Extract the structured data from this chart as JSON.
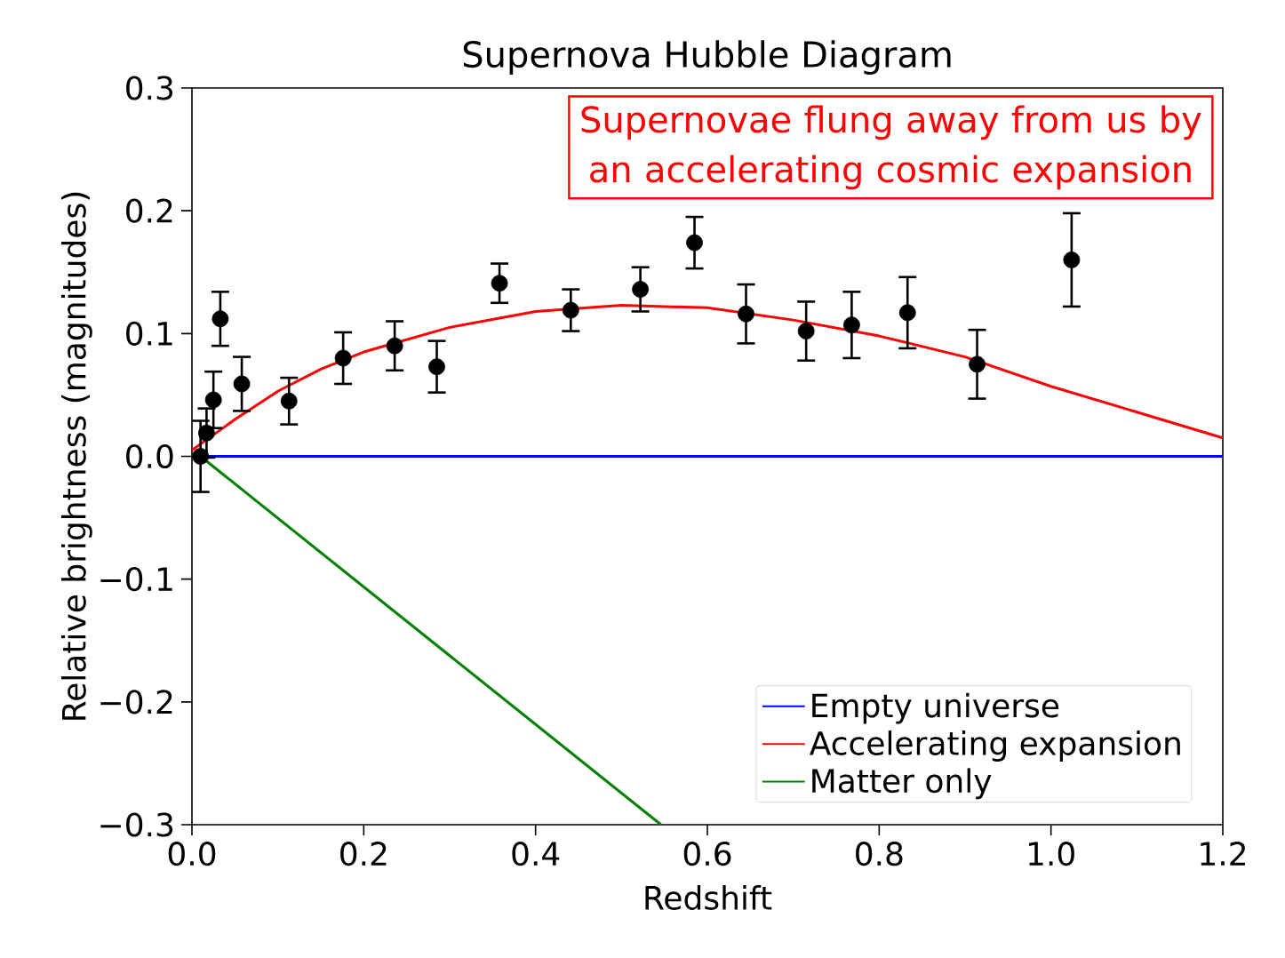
{
  "chart_data": {
    "type": "line",
    "title": "Supernova Hubble Diagram",
    "xlabel": "Redshift",
    "ylabel": "Relative brightness (magnitudes)",
    "annotations": [
      "Supernovae flung away from us by an accelerating cosmic expansion"
    ],
    "xlim": [
      0,
      1.2
    ],
    "ylim": [
      -0.3,
      0.3
    ],
    "xticks": [
      {
        "value": 0,
        "label": "0.0"
      },
      {
        "value": 0.2,
        "label": "0.2"
      },
      {
        "value": 0.4,
        "label": "0.4"
      },
      {
        "value": 0.6,
        "label": "0.6"
      },
      {
        "value": 0.8,
        "label": "0.8"
      },
      {
        "value": 1.0,
        "label": "1.0"
      },
      {
        "value": 1.2,
        "label": "1.2"
      }
    ],
    "yticks": [
      {
        "value": -0.3,
        "label": "−0.3"
      },
      {
        "value": -0.2,
        "label": "−0.2"
      },
      {
        "value": -0.1,
        "label": "−0.1"
      },
      {
        "value": 0,
        "label": "0.0"
      },
      {
        "value": 0.1,
        "label": "0.1"
      },
      {
        "value": 0.2,
        "label": "0.2"
      },
      {
        "value": 0.3,
        "label": "0.3"
      }
    ],
    "legend": "bottom right",
    "grid": false,
    "series": [
      {
        "name": "Empty universe",
        "color": "#0000ff",
        "marker": "none",
        "x": [
          0.01,
          1.2
        ],
        "values": [
          0,
          0
        ]
      },
      {
        "name": "Accelerating expansion",
        "color": "#ff0000",
        "marker": "none",
        "x": [
          0,
          0.05,
          0.1,
          0.15,
          0.2,
          0.3,
          0.4,
          0.5,
          0.6,
          0.7,
          0.8,
          0.9,
          1.0,
          1.1,
          1.2
        ],
        "values": [
          0.005,
          0.03,
          0.053,
          0.071,
          0.085,
          0.105,
          0.118,
          0.123,
          0.121,
          0.111,
          0.098,
          0.081,
          0.057,
          0.036,
          0.015
        ]
      },
      {
        "name": "Matter only",
        "color": "#008000",
        "marker": "none",
        "x": [
          0.01,
          0.546
        ],
        "values": [
          0,
          -0.3
        ]
      },
      {
        "type": "scatter",
        "color": "#000000",
        "marker": "circle",
        "x": [
          0.01,
          0.017,
          0.025,
          0.033,
          0.058,
          0.113,
          0.176,
          0.236,
          0.285,
          0.358,
          0.441,
          0.522,
          0.585,
          0.645,
          0.715,
          0.768,
          0.833,
          0.914,
          1.024
        ],
        "values": [
          0.0,
          0.019,
          0.046,
          0.112,
          0.059,
          0.045,
          0.08,
          0.09,
          0.073,
          0.141,
          0.119,
          0.136,
          0.174,
          0.116,
          0.102,
          0.107,
          0.117,
          0.075,
          0.16
        ],
        "errors": [
          0.029,
          0.02,
          0.023,
          0.022,
          0.022,
          0.019,
          0.021,
          0.02,
          0.021,
          0.016,
          0.017,
          0.018,
          0.021,
          0.024,
          0.024,
          0.027,
          0.029,
          0.028,
          0.038
        ]
      }
    ]
  }
}
